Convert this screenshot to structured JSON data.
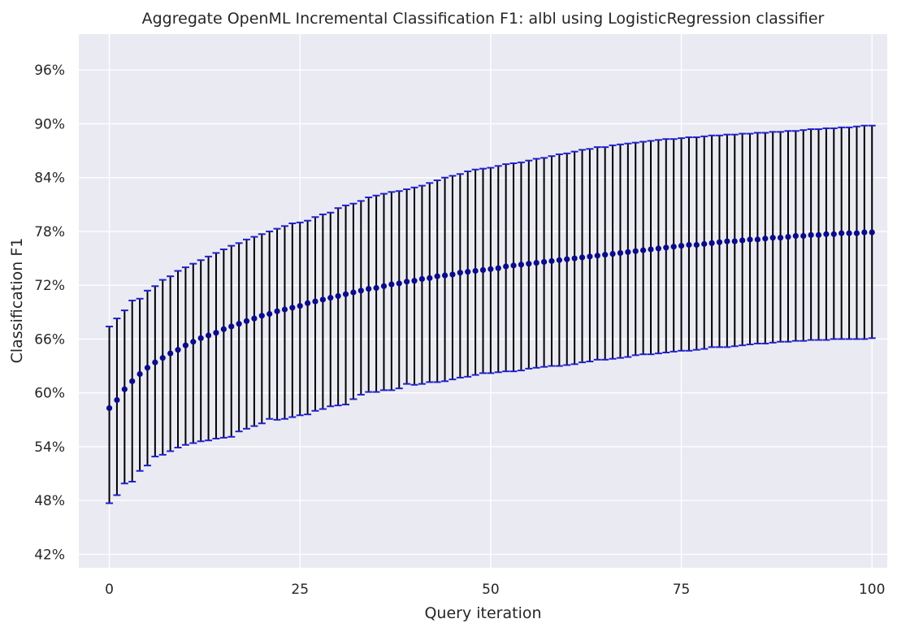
{
  "chart_data": {
    "type": "scatter",
    "title": "Aggregate OpenML Incremental Classification F1: albl using LogisticRegression classifier",
    "xlabel": "Query iteration",
    "ylabel": "Classification F1",
    "xlim": [
      -4,
      102
    ],
    "ylim": [
      0.405,
      1.0
    ],
    "x_ticks": [
      0,
      25,
      50,
      75,
      100
    ],
    "y_ticks": [
      0.42,
      0.48,
      0.54,
      0.6,
      0.66,
      0.72,
      0.78,
      0.84,
      0.9,
      0.96
    ],
    "y_tick_labels": [
      "42%",
      "48%",
      "54%",
      "60%",
      "66%",
      "72%",
      "78%",
      "84%",
      "90%",
      "96%"
    ],
    "grid": true,
    "colors": {
      "background": "#eaeaf2",
      "grid": "#ffffff",
      "marker": "#0a0a8c",
      "errorbar": "#000000",
      "cap": "#1f1fd0"
    },
    "series": [
      {
        "x_start": 0,
        "x_end": 100,
        "mean": [
          0.583,
          0.592,
          0.604,
          0.613,
          0.621,
          0.628,
          0.634,
          0.639,
          0.644,
          0.648,
          0.653,
          0.657,
          0.661,
          0.664,
          0.667,
          0.671,
          0.674,
          0.677,
          0.68,
          0.683,
          0.686,
          0.688,
          0.691,
          0.693,
          0.695,
          0.697,
          0.7,
          0.702,
          0.704,
          0.706,
          0.708,
          0.71,
          0.712,
          0.714,
          0.716,
          0.717,
          0.719,
          0.721,
          0.722,
          0.724,
          0.725,
          0.727,
          0.728,
          0.73,
          0.731,
          0.732,
          0.734,
          0.735,
          0.736,
          0.737,
          0.738,
          0.739,
          0.741,
          0.742,
          0.743,
          0.744,
          0.745,
          0.746,
          0.747,
          0.748,
          0.749,
          0.75,
          0.751,
          0.752,
          0.753,
          0.754,
          0.755,
          0.756,
          0.757,
          0.758,
          0.759,
          0.76,
          0.761,
          0.762,
          0.763,
          0.764,
          0.765,
          0.765,
          0.766,
          0.767,
          0.768,
          0.769,
          0.769,
          0.77,
          0.771,
          0.771,
          0.772,
          0.773,
          0.773,
          0.774,
          0.775,
          0.775,
          0.776,
          0.776,
          0.777,
          0.777,
          0.778,
          0.778,
          0.778,
          0.779,
          0.779
        ],
        "lower": [
          0.477,
          0.486,
          0.499,
          0.501,
          0.513,
          0.519,
          0.529,
          0.531,
          0.535,
          0.539,
          0.542,
          0.544,
          0.546,
          0.547,
          0.549,
          0.55,
          0.551,
          0.557,
          0.56,
          0.563,
          0.566,
          0.571,
          0.57,
          0.571,
          0.573,
          0.575,
          0.576,
          0.58,
          0.582,
          0.585,
          0.586,
          0.587,
          0.593,
          0.598,
          0.601,
          0.601,
          0.603,
          0.603,
          0.605,
          0.61,
          0.609,
          0.61,
          0.612,
          0.612,
          0.613,
          0.615,
          0.617,
          0.618,
          0.62,
          0.622,
          0.622,
          0.623,
          0.624,
          0.624,
          0.625,
          0.627,
          0.628,
          0.629,
          0.63,
          0.63,
          0.631,
          0.632,
          0.634,
          0.635,
          0.637,
          0.637,
          0.638,
          0.639,
          0.64,
          0.642,
          0.643,
          0.643,
          0.644,
          0.645,
          0.646,
          0.647,
          0.647,
          0.648,
          0.649,
          0.651,
          0.651,
          0.651,
          0.652,
          0.653,
          0.654,
          0.655,
          0.655,
          0.656,
          0.657,
          0.657,
          0.658,
          0.658,
          0.659,
          0.659,
          0.659,
          0.66,
          0.66,
          0.66,
          0.66,
          0.66,
          0.661
        ],
        "upper": [
          0.674,
          0.683,
          0.692,
          0.703,
          0.705,
          0.714,
          0.719,
          0.726,
          0.73,
          0.736,
          0.74,
          0.744,
          0.748,
          0.752,
          0.756,
          0.76,
          0.764,
          0.767,
          0.771,
          0.774,
          0.777,
          0.78,
          0.783,
          0.786,
          0.789,
          0.79,
          0.792,
          0.796,
          0.799,
          0.801,
          0.806,
          0.809,
          0.811,
          0.814,
          0.818,
          0.82,
          0.822,
          0.824,
          0.825,
          0.827,
          0.829,
          0.831,
          0.834,
          0.837,
          0.84,
          0.842,
          0.844,
          0.847,
          0.849,
          0.85,
          0.851,
          0.853,
          0.855,
          0.856,
          0.857,
          0.859,
          0.861,
          0.862,
          0.864,
          0.866,
          0.867,
          0.869,
          0.871,
          0.872,
          0.874,
          0.874,
          0.876,
          0.877,
          0.878,
          0.879,
          0.88,
          0.881,
          0.882,
          0.883,
          0.883,
          0.884,
          0.885,
          0.885,
          0.886,
          0.887,
          0.887,
          0.888,
          0.888,
          0.889,
          0.889,
          0.89,
          0.89,
          0.891,
          0.891,
          0.892,
          0.892,
          0.893,
          0.894,
          0.894,
          0.895,
          0.895,
          0.896,
          0.896,
          0.897,
          0.898,
          0.898
        ]
      }
    ]
  }
}
